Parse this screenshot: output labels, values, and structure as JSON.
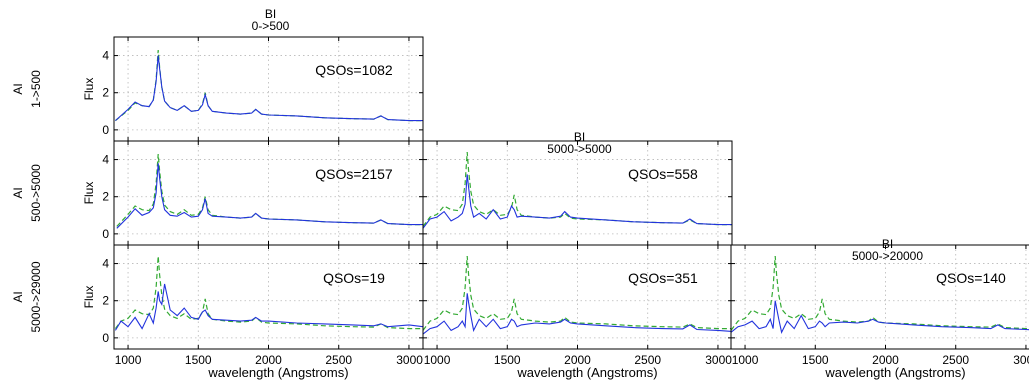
{
  "colors": {
    "quasar_line": "#2233dd",
    "reference_line": "#33aa33",
    "grid": "#b8b8b8",
    "axis": "#000000"
  },
  "axes": {
    "xlabel": "wavelength (Angstroms)",
    "ylabel": "Flux",
    "row_label_prefix": "AI",
    "col_label_prefix": "BI",
    "xlim": [
      900,
      3100
    ],
    "ylim": [
      -0.6,
      5
    ],
    "xticks": [
      1000,
      1500,
      2000,
      2500,
      3000
    ],
    "yticks": [
      0,
      2,
      4
    ],
    "grid": true
  },
  "row_labels": [
    "1->500",
    "500->5000",
    "5000->29000"
  ],
  "col_labels": [
    "0->500",
    "5000->5000",
    "5000->20000"
  ],
  "chart_data": [
    {
      "type": "line",
      "row": 0,
      "col": 0,
      "annotation": "QSOs=1082",
      "series": [
        {
          "role": "quasar_composite",
          "x": [
            910,
            1000,
            1050,
            1100,
            1150,
            1180,
            1200,
            1215,
            1225,
            1240,
            1260,
            1300,
            1350,
            1400,
            1450,
            1500,
            1530,
            1549,
            1570,
            1600,
            1700,
            1800,
            1880,
            1909,
            1950,
            2000,
            2200,
            2400,
            2600,
            2750,
            2800,
            2850,
            3000,
            3100
          ],
          "y": [
            0.5,
            1.1,
            1.5,
            1.3,
            1.25,
            1.6,
            2.6,
            4.0,
            3.3,
            2.3,
            1.55,
            1.2,
            1.05,
            1.3,
            1.0,
            1.05,
            1.35,
            1.9,
            1.3,
            1.0,
            0.9,
            0.85,
            0.9,
            1.1,
            0.85,
            0.8,
            0.75,
            0.65,
            0.6,
            0.58,
            0.75,
            0.55,
            0.5,
            0.5
          ]
        },
        {
          "role": "reference_composite",
          "x": [
            910,
            1000,
            1050,
            1100,
            1150,
            1180,
            1200,
            1215,
            1225,
            1240,
            1260,
            1300,
            1350,
            1400,
            1450,
            1500,
            1530,
            1549,
            1570,
            1600,
            1700,
            1800,
            1880,
            1909,
            1950,
            2000,
            2200,
            2400,
            2600,
            2750,
            2800,
            2850,
            3000,
            3100
          ],
          "y": [
            0.5,
            1.05,
            1.45,
            1.3,
            1.25,
            1.6,
            2.7,
            4.3,
            3.4,
            2.3,
            1.55,
            1.2,
            1.05,
            1.3,
            1.0,
            1.05,
            1.4,
            2.0,
            1.3,
            1.0,
            0.9,
            0.85,
            0.9,
            1.1,
            0.85,
            0.8,
            0.75,
            0.65,
            0.6,
            0.58,
            0.75,
            0.55,
            0.5,
            0.5
          ]
        }
      ]
    },
    {
      "type": "line",
      "row": 1,
      "col": 0,
      "annotation": "QSOs=2157",
      "series": [
        {
          "role": "quasar_composite",
          "x": [
            920,
            1000,
            1050,
            1100,
            1150,
            1180,
            1200,
            1215,
            1225,
            1240,
            1260,
            1300,
            1350,
            1400,
            1450,
            1500,
            1530,
            1549,
            1570,
            1600,
            1700,
            1800,
            1880,
            1909,
            1950,
            2000,
            2200,
            2400,
            2600,
            2750,
            2800,
            2850,
            3000,
            3100
          ],
          "y": [
            0.3,
            0.9,
            1.35,
            1.0,
            1.15,
            1.4,
            2.2,
            3.8,
            3.0,
            2.0,
            1.3,
            1.0,
            0.95,
            1.15,
            0.9,
            0.95,
            1.3,
            1.9,
            1.1,
            0.95,
            0.9,
            0.85,
            0.9,
            1.1,
            0.85,
            0.8,
            0.75,
            0.65,
            0.6,
            0.58,
            0.75,
            0.55,
            0.5,
            0.5
          ]
        },
        {
          "role": "reference_composite",
          "x": [
            920,
            1000,
            1050,
            1100,
            1150,
            1180,
            1200,
            1215,
            1225,
            1240,
            1260,
            1300,
            1350,
            1400,
            1450,
            1500,
            1530,
            1549,
            1570,
            1600,
            1700,
            1800,
            1880,
            1909,
            1950,
            2000,
            2200,
            2400,
            2600,
            2750,
            2800,
            2850,
            3000,
            3100
          ],
          "y": [
            0.4,
            1.05,
            1.5,
            1.3,
            1.25,
            1.6,
            2.7,
            4.3,
            3.4,
            2.3,
            1.55,
            1.2,
            1.05,
            1.3,
            1.0,
            1.05,
            1.4,
            2.0,
            1.3,
            1.0,
            0.9,
            0.85,
            0.9,
            1.1,
            0.85,
            0.8,
            0.75,
            0.65,
            0.6,
            0.58,
            0.75,
            0.55,
            0.5,
            0.5
          ]
        }
      ]
    },
    {
      "type": "line",
      "row": 1,
      "col": 1,
      "annotation": "QSOs=558",
      "series": [
        {
          "role": "quasar_composite",
          "x": [
            900,
            950,
            1000,
            1050,
            1100,
            1150,
            1180,
            1200,
            1215,
            1225,
            1240,
            1260,
            1300,
            1350,
            1400,
            1450,
            1500,
            1530,
            1549,
            1570,
            1600,
            1700,
            1800,
            1880,
            1909,
            1950,
            2000,
            2200,
            2400,
            2600,
            2750,
            2800,
            2850,
            3000,
            3100
          ],
          "y": [
            0.3,
            0.8,
            0.9,
            1.2,
            0.7,
            0.9,
            1.1,
            1.6,
            3.2,
            2.5,
            1.5,
            0.9,
            1.1,
            0.8,
            1.3,
            0.8,
            0.9,
            1.5,
            1.3,
            0.9,
            0.95,
            0.9,
            0.85,
            0.95,
            1.2,
            0.9,
            0.85,
            0.75,
            0.65,
            0.6,
            0.58,
            0.8,
            0.55,
            0.5,
            0.5
          ]
        },
        {
          "role": "reference_composite",
          "x": [
            900,
            950,
            1000,
            1050,
            1100,
            1150,
            1180,
            1200,
            1215,
            1225,
            1240,
            1260,
            1300,
            1350,
            1400,
            1450,
            1500,
            1530,
            1549,
            1570,
            1600,
            1700,
            1800,
            1880,
            1909,
            1950,
            2000,
            2200,
            2400,
            2600,
            2750,
            2800,
            2850,
            3000,
            3100
          ],
          "y": [
            0.4,
            0.9,
            1.05,
            1.5,
            1.3,
            1.25,
            1.6,
            2.7,
            4.4,
            3.4,
            2.3,
            1.55,
            1.2,
            1.05,
            1.3,
            1.0,
            1.05,
            1.4,
            2.1,
            1.3,
            1.0,
            0.9,
            0.85,
            0.9,
            1.1,
            0.85,
            0.8,
            0.75,
            0.65,
            0.6,
            0.58,
            0.75,
            0.55,
            0.5,
            0.5
          ]
        }
      ]
    },
    {
      "type": "line",
      "row": 2,
      "col": 0,
      "annotation": "QSOs=19",
      "series": [
        {
          "role": "quasar_composite",
          "x": [
            910,
            950,
            1000,
            1050,
            1100,
            1150,
            1180,
            1200,
            1215,
            1225,
            1240,
            1260,
            1300,
            1350,
            1400,
            1450,
            1500,
            1530,
            1549,
            1570,
            1600,
            1700,
            1800,
            1880,
            1909,
            1950,
            2000,
            2200,
            2400,
            2600,
            2750,
            2800,
            2850,
            3000,
            3100
          ],
          "y": [
            0.4,
            0.9,
            0.6,
            1.1,
            0.5,
            1.3,
            0.8,
            1.6,
            2.5,
            2.0,
            1.8,
            2.9,
            1.5,
            1.2,
            1.6,
            1.1,
            1.0,
            1.4,
            1.5,
            1.2,
            1.0,
            0.95,
            0.9,
            0.95,
            1.1,
            0.9,
            0.9,
            0.8,
            0.75,
            0.7,
            0.65,
            0.75,
            0.6,
            0.7,
            0.6
          ]
        },
        {
          "role": "reference_composite",
          "x": [
            910,
            950,
            1000,
            1050,
            1100,
            1150,
            1180,
            1200,
            1215,
            1225,
            1240,
            1260,
            1300,
            1350,
            1400,
            1450,
            1500,
            1530,
            1549,
            1570,
            1600,
            1700,
            1800,
            1880,
            1909,
            1950,
            2000,
            2200,
            2400,
            2600,
            2750,
            2800,
            2850,
            3000,
            3100
          ],
          "y": [
            0.5,
            0.9,
            1.05,
            1.5,
            1.3,
            1.25,
            1.6,
            2.7,
            4.4,
            3.4,
            2.3,
            1.55,
            1.2,
            1.05,
            1.3,
            1.0,
            1.05,
            1.4,
            2.1,
            1.3,
            1.0,
            0.9,
            0.85,
            0.9,
            1.1,
            0.85,
            0.8,
            0.75,
            0.65,
            0.6,
            0.58,
            0.75,
            0.55,
            0.5,
            0.5
          ]
        }
      ]
    },
    {
      "type": "line",
      "row": 2,
      "col": 1,
      "annotation": "QSOs=351",
      "series": [
        {
          "role": "quasar_composite",
          "x": [
            900,
            950,
            1000,
            1050,
            1100,
            1150,
            1180,
            1200,
            1215,
            1225,
            1240,
            1260,
            1300,
            1350,
            1400,
            1450,
            1500,
            1530,
            1549,
            1570,
            1600,
            1700,
            1800,
            1880,
            1909,
            1950,
            2000,
            2200,
            2400,
            2600,
            2750,
            2800,
            2850,
            3000,
            3100
          ],
          "y": [
            0.2,
            0.5,
            0.6,
            0.9,
            0.4,
            0.6,
            0.9,
            0.6,
            2.4,
            1.9,
            1.2,
            0.4,
            1.0,
            0.6,
            1.0,
            0.5,
            0.6,
            1.0,
            0.9,
            0.6,
            0.7,
            0.8,
            0.75,
            0.85,
            1.0,
            0.8,
            0.75,
            0.65,
            0.55,
            0.5,
            0.48,
            0.7,
            0.45,
            0.4,
            0.35
          ]
        },
        {
          "role": "reference_composite",
          "x": [
            900,
            950,
            1000,
            1050,
            1100,
            1150,
            1180,
            1200,
            1215,
            1225,
            1240,
            1260,
            1300,
            1350,
            1400,
            1450,
            1500,
            1530,
            1549,
            1570,
            1600,
            1700,
            1800,
            1880,
            1909,
            1950,
            2000,
            2200,
            2400,
            2600,
            2750,
            2800,
            2850,
            3000,
            3100
          ],
          "y": [
            0.4,
            0.9,
            1.05,
            1.5,
            1.3,
            1.25,
            1.6,
            2.7,
            4.4,
            3.4,
            2.3,
            1.55,
            1.2,
            1.05,
            1.3,
            1.0,
            1.05,
            1.4,
            2.1,
            1.3,
            1.0,
            0.9,
            0.85,
            0.9,
            1.1,
            0.85,
            0.8,
            0.75,
            0.65,
            0.6,
            0.58,
            0.75,
            0.55,
            0.5,
            0.5
          ]
        }
      ]
    },
    {
      "type": "line",
      "row": 2,
      "col": 2,
      "annotation": "QSOs=140",
      "series": [
        {
          "role": "quasar_composite",
          "x": [
            900,
            950,
            1000,
            1050,
            1100,
            1150,
            1180,
            1200,
            1215,
            1225,
            1240,
            1260,
            1300,
            1350,
            1400,
            1450,
            1500,
            1530,
            1549,
            1570,
            1600,
            1700,
            1800,
            1880,
            1909,
            1950,
            2000,
            2200,
            2400,
            2600,
            2750,
            2800,
            2850,
            3000,
            3100
          ],
          "y": [
            0.3,
            0.6,
            0.7,
            0.9,
            0.5,
            0.6,
            1.0,
            0.5,
            2.0,
            1.6,
            1.0,
            0.3,
            0.9,
            0.5,
            1.2,
            0.5,
            0.6,
            0.9,
            0.8,
            0.6,
            0.8,
            0.85,
            0.8,
            0.9,
            1.0,
            0.85,
            0.8,
            0.7,
            0.6,
            0.55,
            0.5,
            0.7,
            0.5,
            0.45,
            0.4
          ]
        },
        {
          "role": "reference_composite",
          "x": [
            900,
            950,
            1000,
            1050,
            1100,
            1150,
            1180,
            1200,
            1215,
            1225,
            1240,
            1260,
            1300,
            1350,
            1400,
            1450,
            1500,
            1530,
            1549,
            1570,
            1600,
            1700,
            1800,
            1880,
            1909,
            1950,
            2000,
            2200,
            2400,
            2600,
            2750,
            2800,
            2850,
            3000,
            3100
          ],
          "y": [
            0.4,
            0.9,
            1.05,
            1.5,
            1.3,
            1.25,
            1.6,
            2.7,
            4.4,
            3.4,
            2.3,
            1.55,
            1.2,
            1.05,
            1.3,
            1.0,
            1.05,
            1.4,
            2.1,
            1.3,
            1.0,
            0.9,
            0.85,
            0.9,
            1.1,
            0.85,
            0.8,
            0.75,
            0.65,
            0.6,
            0.58,
            0.75,
            0.55,
            0.5,
            0.5
          ]
        }
      ]
    }
  ]
}
